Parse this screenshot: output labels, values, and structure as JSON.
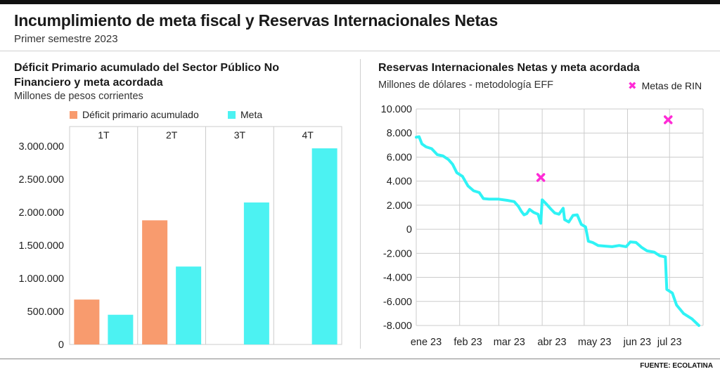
{
  "header": {
    "title": "Incumplimiento de meta fiscal y Reservas Internacionales Netas",
    "subtitle": "Primer semestre 2023"
  },
  "left": {
    "title_line1": "Déficit Primario acumulado del Sector Público No",
    "title_line2": "Financiero y meta acordada",
    "units": "Millones de pesos corrientes"
  },
  "right": {
    "title": "Reservas Internacionales Netas y meta acordada",
    "units": "Millones de dólares - metodología EFF"
  },
  "colors": {
    "deficit": "#f89b6e",
    "meta": "#4cf2f2",
    "reservas": "#2ff3f5",
    "metas_rin": "#ff2bd6",
    "grid": "#cccccc"
  },
  "footer": {
    "source": "FUENTE: ECOLATINA"
  },
  "chart_data": [
    {
      "type": "bar",
      "categories": [
        "1T",
        "2T",
        "3T",
        "4T"
      ],
      "series": [
        {
          "name": "Déficit primario acumulado",
          "values": [
            680000,
            1880000,
            null,
            null
          ]
        },
        {
          "name": "Meta",
          "values": [
            450000,
            1180000,
            2150000,
            2970000
          ]
        }
      ],
      "yticks": [
        0,
        500000,
        1000000,
        1500000,
        2000000,
        2500000,
        3000000
      ],
      "ytick_labels": [
        "0",
        "500.000",
        "1.000.000",
        "1.500.000",
        "2.000.000",
        "2.500.000",
        "3.000.000"
      ],
      "ylim": [
        0,
        3300000
      ],
      "legend": "top",
      "grid": "vertical separators"
    },
    {
      "type": "line",
      "x_axis": "date",
      "x_ticks": [
        "2023-01-01",
        "2023-02-01",
        "2023-03-01",
        "2023-04-01",
        "2023-05-01",
        "2023-06-01",
        "2023-07-01"
      ],
      "xtick_labels": [
        "ene 23",
        "feb 23",
        "mar 23",
        "abr 23",
        "may 23",
        "jun 23",
        "jul 23"
      ],
      "xlim": [
        "2023-01-01",
        "2023-07-25"
      ],
      "yticks": [
        -8000,
        -6000,
        -4000,
        -2000,
        0,
        2000,
        4000,
        6000,
        8000,
        10000
      ],
      "ytick_labels": [
        "-8.000",
        "-6.000",
        "-4.000",
        "-2.000",
        "0",
        "2.000",
        "4.000",
        "6.000",
        "8.000",
        "10.000"
      ],
      "ylim": [
        -8000,
        10000
      ],
      "grid": true,
      "legend": "top-right",
      "series": [
        {
          "values": [
            [
              "2023-01-01",
              7650
            ],
            [
              "2023-01-03",
              7700
            ],
            [
              "2023-01-05",
              7100
            ],
            [
              "2023-01-08",
              6850
            ],
            [
              "2023-01-12",
              6700
            ],
            [
              "2023-01-16",
              6200
            ],
            [
              "2023-01-20",
              6100
            ],
            [
              "2023-01-24",
              5800
            ],
            [
              "2023-01-27",
              5400
            ],
            [
              "2023-01-30",
              4700
            ],
            [
              "2023-02-03",
              4400
            ],
            [
              "2023-02-07",
              3600
            ],
            [
              "2023-02-11",
              3200
            ],
            [
              "2023-02-15",
              3050
            ],
            [
              "2023-02-18",
              2550
            ],
            [
              "2023-02-22",
              2500
            ],
            [
              "2023-03-01",
              2500
            ],
            [
              "2023-03-07",
              2400
            ],
            [
              "2023-03-12",
              2300
            ],
            [
              "2023-03-15",
              1900
            ],
            [
              "2023-03-17",
              1500
            ],
            [
              "2023-03-19",
              1200
            ],
            [
              "2023-03-21",
              1300
            ],
            [
              "2023-03-23",
              1650
            ],
            [
              "2023-03-26",
              1400
            ],
            [
              "2023-03-29",
              1250
            ],
            [
              "2023-03-31",
              500
            ],
            [
              "2023-04-01",
              2450
            ],
            [
              "2023-04-04",
              2100
            ],
            [
              "2023-04-07",
              1700
            ],
            [
              "2023-04-10",
              1350
            ],
            [
              "2023-04-13",
              1250
            ],
            [
              "2023-04-16",
              1750
            ],
            [
              "2023-04-17",
              800
            ],
            [
              "2023-04-20",
              600
            ],
            [
              "2023-04-23",
              1150
            ],
            [
              "2023-04-26",
              1200
            ],
            [
              "2023-04-29",
              400
            ],
            [
              "2023-05-02",
              200
            ],
            [
              "2023-05-04",
              -1000
            ],
            [
              "2023-05-07",
              -1100
            ],
            [
              "2023-05-11",
              -1350
            ],
            [
              "2023-05-16",
              -1400
            ],
            [
              "2023-05-21",
              -1450
            ],
            [
              "2023-05-26",
              -1350
            ],
            [
              "2023-05-31",
              -1450
            ],
            [
              "2023-06-03",
              -1050
            ],
            [
              "2023-06-07",
              -1100
            ],
            [
              "2023-06-11",
              -1500
            ],
            [
              "2023-06-15",
              -1800
            ],
            [
              "2023-06-20",
              -1900
            ],
            [
              "2023-06-24",
              -2200
            ],
            [
              "2023-06-28",
              -2300
            ],
            [
              "2023-06-29",
              -5000
            ],
            [
              "2023-07-03",
              -5300
            ],
            [
              "2023-07-06",
              -6300
            ],
            [
              "2023-07-11",
              -7000
            ],
            [
              "2023-07-17",
              -7450
            ],
            [
              "2023-07-22",
              -8000
            ]
          ]
        },
        {
          "name": "Metas de RIN",
          "marker": "x",
          "values": [
            [
              "2023-03-31",
              4300
            ],
            [
              "2023-06-30",
              9100
            ]
          ]
        }
      ]
    }
  ]
}
